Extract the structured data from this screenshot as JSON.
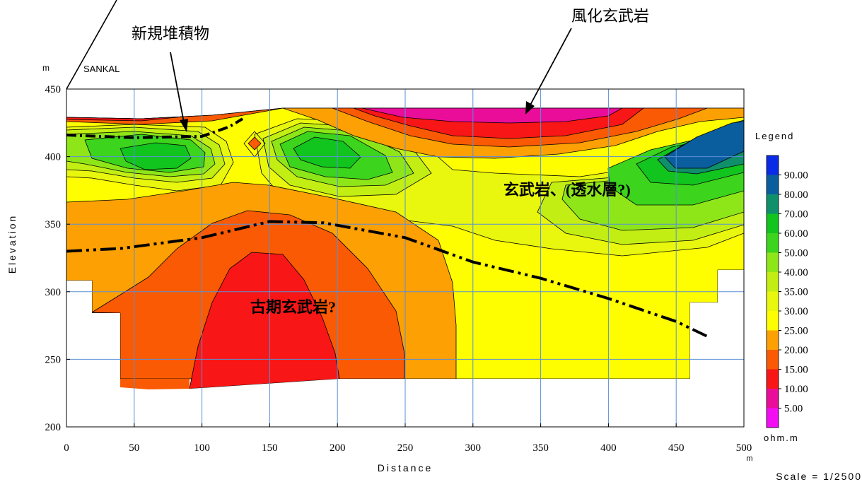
{
  "chart_data": {
    "type": "heatmap",
    "title": "",
    "xlabel": "Distance",
    "ylabel": "Elevation",
    "x_unit": "m",
    "y_unit": "m",
    "xlim": [
      0,
      500
    ],
    "ylim": [
      200,
      450
    ],
    "x_ticks": [
      0,
      50,
      100,
      150,
      200,
      250,
      300,
      350,
      400,
      450,
      500
    ],
    "y_ticks": [
      200,
      250,
      300,
      350,
      400,
      450
    ],
    "grid": true,
    "scale_text": "Scale = 1/2500",
    "site_label": "SANKAL",
    "legend": {
      "title": "Legend",
      "unit": "ohm.m",
      "placement": "right",
      "levels": [
        {
          "value": "90.00",
          "color": "#0a2be6"
        },
        {
          "value": "80.00",
          "color": "#0b5e9e"
        },
        {
          "value": "70.00",
          "color": "#0f8f6a"
        },
        {
          "value": "60.00",
          "color": "#12c41e"
        },
        {
          "value": "50.00",
          "color": "#3cd41c"
        },
        {
          "value": "40.00",
          "color": "#8ee619"
        },
        {
          "value": "35.00",
          "color": "#c2ee14"
        },
        {
          "value": "30.00",
          "color": "#e9f70e"
        },
        {
          "value": "25.00",
          "color": "#fefe00"
        },
        {
          "value": "20.00",
          "color": "#fca003"
        },
        {
          "value": "15.00",
          "color": "#f95a03"
        },
        {
          "value": "10.00",
          "color": "#f91616"
        },
        {
          "value": "5.00",
          "color": "#ea0d9a"
        },
        {
          "value": "",
          "color": "#f20df2"
        }
      ]
    },
    "annotations": {
      "weathered_basalt": "風化玄武岩",
      "new_deposits": "新規堆積物",
      "basalt_aquifer": "玄武岩、(透水層?)",
      "old_basalt": "古期玄武岩?"
    },
    "boundary_lines": [
      {
        "name": "",
        "style": "dash-dot-dot",
        "points": [
          [
            0,
            330
          ],
          [
            40,
            332
          ],
          [
            100,
            340
          ],
          [
            150,
            352
          ],
          [
            190,
            351
          ],
          [
            250,
            340
          ],
          [
            300,
            322
          ],
          [
            350,
            310
          ],
          [
            400,
            295
          ],
          [
            450,
            278
          ],
          [
            475,
            266
          ]
        ]
      },
      {
        "name": "",
        "style": "dash-dot",
        "points": [
          [
            0,
            416
          ],
          [
            50,
            414
          ],
          [
            100,
            415
          ],
          [
            120,
            422
          ],
          [
            130,
            428
          ]
        ]
      }
    ]
  }
}
